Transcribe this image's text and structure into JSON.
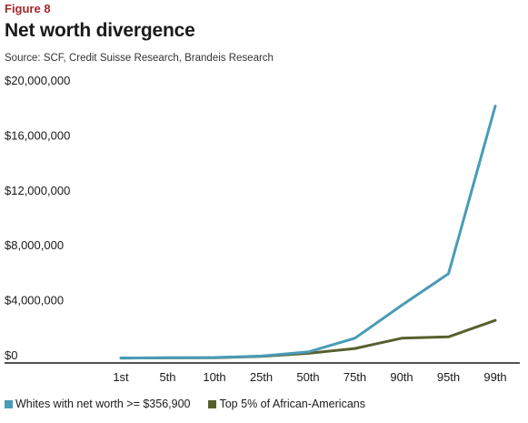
{
  "figure_label": "Figure 8",
  "title": "Net worth divergence",
  "subtitle": "Source: SCF, Credit Suisse Research, Brandeis Research",
  "chart_data": {
    "type": "line",
    "categories": [
      "1st",
      "5th",
      "10th",
      "25th",
      "50th",
      "75th",
      "90th",
      "95th",
      "99th"
    ],
    "series": [
      {
        "name": "Whites with net worth >= $356,900",
        "color": "#4a9bb8",
        "values": [
          360000,
          380000,
          400000,
          500000,
          800000,
          1800000,
          4200000,
          6500000,
          18700000
        ]
      },
      {
        "name": "Top 5% of African-Americans",
        "color": "#56602d",
        "values": [
          360000,
          370000,
          380000,
          480000,
          700000,
          1050000,
          1800000,
          1900000,
          3100000
        ]
      }
    ],
    "y_ticks": [
      {
        "value": 0,
        "label": "$0"
      },
      {
        "value": 4000000,
        "label": "$4,000,000"
      },
      {
        "value": 8000000,
        "label": "$8,000,000"
      },
      {
        "value": 12000000,
        "label": "$12,000,000"
      },
      {
        "value": 16000000,
        "label": "$16,000,000"
      },
      {
        "value": 20000000,
        "label": "$20,000,000"
      }
    ],
    "ylim": [
      0,
      20000000
    ],
    "xlabel": "",
    "ylabel": "",
    "grid": false,
    "legend_position": "bottom-left"
  }
}
